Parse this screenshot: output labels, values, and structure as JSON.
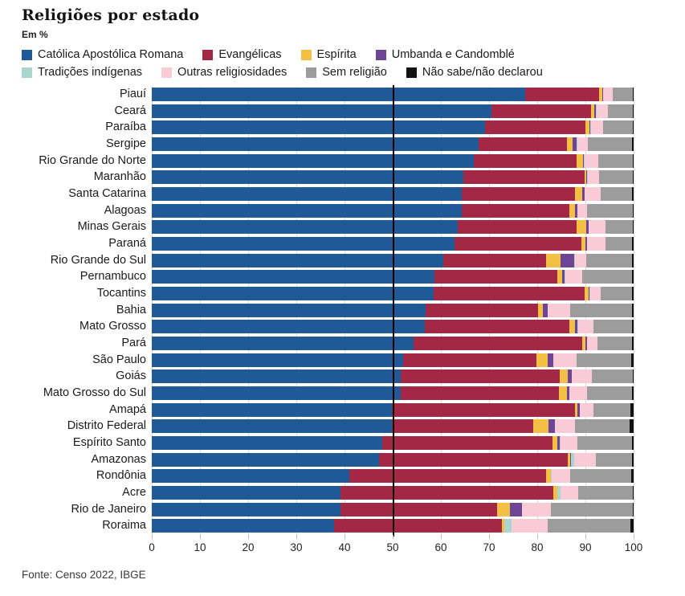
{
  "header": {
    "title": "Religiões por estado",
    "subtitle": "Em %"
  },
  "footer": {
    "source": "Fonte: Censo 2022, IBGE"
  },
  "colors": {
    "background": "#ffffff",
    "gridline": "#d9d9d9",
    "reference_line": "#000000",
    "text": "#1a1a1a"
  },
  "chart_data": {
    "type": "bar",
    "variant": "stacked-horizontal",
    "title": "Religiões por estado",
    "unit_label": "Em %",
    "xlim": [
      0,
      100
    ],
    "x_ticks": [
      0,
      10,
      20,
      30,
      40,
      50,
      60,
      70,
      80,
      90,
      100
    ],
    "reference_line_x": 50,
    "grid": true,
    "legend_position": "top",
    "legend_rows": [
      4,
      4
    ],
    "religions": [
      {
        "key": "catolica",
        "label": "Católica Apostólica Romana",
        "color": "#1f5a96"
      },
      {
        "key": "evangelicas",
        "label": "Evangélicas",
        "color": "#a22846"
      },
      {
        "key": "espirita",
        "label": "Espírita",
        "color": "#f3bf45"
      },
      {
        "key": "umbanda",
        "label": "Umbanda e Candomblé",
        "color": "#6e4595"
      },
      {
        "key": "tradicoes",
        "label": "Tradições indígenas",
        "color": "#abd6cd"
      },
      {
        "key": "outras",
        "label": "Outras religiosidades",
        "color": "#f9cbd6"
      },
      {
        "key": "sem",
        "label": "Sem religião",
        "color": "#9c9c9c"
      },
      {
        "key": "nao_sabe",
        "label": "Não sabe/não declarou",
        "color": "#121212"
      }
    ],
    "states": [
      {
        "name": "Piauí",
        "values": [
          77.5,
          15.4,
          0.6,
          0.1,
          0.1,
          1.9,
          4.2,
          0.2
        ]
      },
      {
        "name": "Ceará",
        "values": [
          70.5,
          20.7,
          0.6,
          0.4,
          0.1,
          2.4,
          5.1,
          0.2
        ]
      },
      {
        "name": "Paraíba",
        "values": [
          69.2,
          20.8,
          0.8,
          0.2,
          0.1,
          2.6,
          6.1,
          0.2
        ]
      },
      {
        "name": "Sergipe",
        "values": [
          67.8,
          18.4,
          1.2,
          0.8,
          0.1,
          2.2,
          9.2,
          0.3
        ]
      },
      {
        "name": "Rio Grande do Norte",
        "values": [
          66.9,
          21.3,
          1.3,
          0.2,
          0.1,
          2.8,
          7.2,
          0.2
        ]
      },
      {
        "name": "Maranhão",
        "values": [
          64.6,
          25.3,
          0.2,
          0.3,
          0.1,
          2.4,
          6.9,
          0.2
        ]
      },
      {
        "name": "Santa Catarina",
        "values": [
          64.4,
          23.4,
          1.5,
          0.5,
          0.1,
          3.2,
          6.6,
          0.3
        ]
      },
      {
        "name": "Alagoas",
        "values": [
          64.4,
          22.3,
          1.1,
          0.5,
          0.1,
          2.0,
          9.4,
          0.2
        ]
      },
      {
        "name": "Minas Gerais",
        "values": [
          63.5,
          24.7,
          2.0,
          0.4,
          0.1,
          3.4,
          5.7,
          0.2
        ]
      },
      {
        "name": "Paraná",
        "values": [
          62.8,
          26.3,
          0.9,
          0.3,
          0.1,
          3.7,
          5.6,
          0.3
        ]
      },
      {
        "name": "Rio Grande do Sul",
        "values": [
          60.5,
          21.4,
          2.9,
          2.9,
          0.1,
          2.4,
          9.5,
          0.3
        ]
      },
      {
        "name": "Pernambuco",
        "values": [
          58.7,
          25.5,
          1.0,
          0.5,
          0.1,
          3.5,
          10.4,
          0.3
        ]
      },
      {
        "name": "Tocantins",
        "values": [
          58.5,
          31.4,
          0.7,
          0.2,
          0.2,
          2.2,
          6.5,
          0.3
        ]
      },
      {
        "name": "Bahia",
        "values": [
          56.9,
          23.2,
          1.0,
          1.0,
          0.1,
          4.6,
          12.9,
          0.3
        ]
      },
      {
        "name": "Mato Grosso",
        "values": [
          56.6,
          30.0,
          1.3,
          0.5,
          0.1,
          3.2,
          7.9,
          0.4
        ]
      },
      {
        "name": "Pará",
        "values": [
          54.4,
          35.0,
          0.6,
          0.3,
          0.1,
          2.1,
          7.2,
          0.3
        ]
      },
      {
        "name": "São Paulo",
        "values": [
          52.2,
          27.7,
          2.3,
          1.1,
          0.1,
          4.8,
          11.3,
          0.5
        ]
      },
      {
        "name": "Goiás",
        "values": [
          51.7,
          32.9,
          1.8,
          0.7,
          0.1,
          4.1,
          8.5,
          0.2
        ]
      },
      {
        "name": "Mato Grosso do Sul",
        "values": [
          51.7,
          32.8,
          1.7,
          0.4,
          0.1,
          3.7,
          9.3,
          0.3
        ]
      },
      {
        "name": "Amapá",
        "values": [
          49.8,
          38.0,
          0.6,
          0.4,
          0.1,
          2.8,
          7.6,
          0.7
        ]
      },
      {
        "name": "Distrito Federal",
        "values": [
          49.8,
          29.3,
          3.3,
          1.2,
          0.1,
          4.2,
          11.3,
          0.8
        ]
      },
      {
        "name": "Espírito Santo",
        "values": [
          47.8,
          35.4,
          1.0,
          0.5,
          0.1,
          3.5,
          11.4,
          0.3
        ]
      },
      {
        "name": "Amazonas",
        "values": [
          47.2,
          39.2,
          0.5,
          0.1,
          0.7,
          4.4,
          7.5,
          0.4
        ]
      },
      {
        "name": "Rondônia",
        "values": [
          41.0,
          40.9,
          0.9,
          0.1,
          0.1,
          3.8,
          12.7,
          0.5
        ]
      },
      {
        "name": "Acre",
        "values": [
          39.1,
          44.3,
          0.7,
          0.1,
          0.6,
          3.7,
          11.3,
          0.2
        ]
      },
      {
        "name": "Rio de Janeiro",
        "values": [
          39.1,
          32.6,
          2.6,
          2.5,
          0.1,
          6.0,
          16.9,
          0.2
        ]
      },
      {
        "name": "Roraima",
        "values": [
          37.9,
          34.8,
          0.4,
          0.1,
          1.4,
          7.6,
          17.1,
          0.7
        ]
      }
    ]
  }
}
